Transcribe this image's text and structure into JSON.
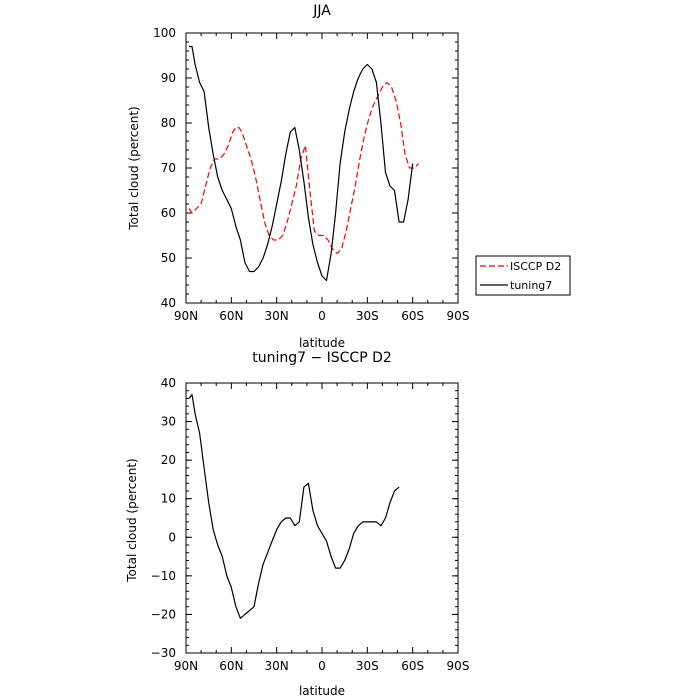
{
  "chart_data": [
    {
      "type": "line",
      "title": "JJA",
      "xlabel": "latitude",
      "ylabel": "Total cloud (percent)",
      "xlim": [
        90,
        -90
      ],
      "ylim": [
        40,
        100
      ],
      "x_ticks": [
        90,
        60,
        30,
        0,
        -30,
        -60,
        -90
      ],
      "x_tick_labels": [
        "90N",
        "60N",
        "30N",
        "0",
        "30S",
        "60S",
        "90S"
      ],
      "y_ticks": [
        40,
        50,
        60,
        70,
        80,
        90,
        100
      ],
      "y_tick_labels": [
        "40",
        "50",
        "60",
        "70",
        "80",
        "90",
        "100"
      ],
      "grid": false,
      "legend_position": "right",
      "series": [
        {
          "name": "ISCCP D2",
          "color": "#ff0000",
          "dash": "dashed",
          "x": [
            88,
            86,
            83,
            80,
            77,
            74,
            71,
            68,
            65,
            62,
            59,
            57,
            55,
            53,
            50,
            47,
            44,
            41,
            38,
            35,
            32,
            29,
            26,
            23,
            20,
            17,
            14,
            11,
            8,
            5,
            2,
            -1,
            -4,
            -7,
            -10,
            -13,
            -16,
            -19,
            -22,
            -25,
            -28,
            -31,
            -34,
            -37,
            -40,
            -43,
            -46,
            -49,
            -52,
            -55,
            -58,
            -61,
            -64
          ],
          "y": [
            61,
            60,
            61,
            62,
            66,
            70,
            72,
            72,
            73,
            75,
            78,
            79,
            79,
            78,
            75,
            72,
            68,
            63,
            58,
            55,
            54,
            54,
            55,
            58,
            62,
            66,
            72,
            75,
            65,
            56,
            55,
            55,
            54,
            52,
            51,
            52,
            56,
            61,
            66,
            72,
            77,
            81,
            84,
            86,
            88,
            89,
            88,
            85,
            80,
            73,
            70,
            70,
            71
          ]
        },
        {
          "name": "tuning7",
          "color": "#000000",
          "dash": "solid",
          "x": [
            88,
            86,
            84,
            81,
            78,
            75,
            72,
            69,
            66,
            63,
            60,
            57,
            54,
            51,
            48,
            45,
            42,
            39,
            36,
            33,
            30,
            27,
            24,
            21,
            18,
            15,
            12,
            9,
            6,
            3,
            0,
            -3,
            -6,
            -9,
            -12,
            -15,
            -18,
            -21,
            -24,
            -27,
            -30,
            -33,
            -36,
            -39,
            -42,
            -45,
            -48,
            -51,
            -54,
            -57,
            -60,
            -63,
            -66,
            -69,
            -72,
            -75,
            -78,
            -81,
            -84,
            -87
          ],
          "y": [
            97,
            97,
            93,
            89,
            87,
            79,
            73,
            68,
            65,
            63,
            61,
            57,
            54,
            49,
            47,
            47,
            48,
            50,
            53,
            57,
            62,
            67,
            73,
            78,
            79,
            74,
            67,
            59,
            53,
            49,
            46,
            45,
            51,
            60,
            71,
            78,
            83,
            87,
            90,
            92,
            93,
            92,
            89,
            80,
            69,
            66,
            65,
            58,
            58,
            63,
            71,
            null,
            null,
            null,
            null,
            null,
            null,
            null,
            null,
            null
          ]
        }
      ]
    },
    {
      "type": "line",
      "title": "tuning7 − ISCCP D2",
      "xlabel": "latitude",
      "ylabel": "Total cloud (percent)",
      "xlim": [
        90,
        -90
      ],
      "ylim": [
        -30,
        40
      ],
      "x_ticks": [
        90,
        60,
        30,
        0,
        -30,
        -60,
        -90
      ],
      "x_tick_labels": [
        "90N",
        "60N",
        "30N",
        "0",
        "30S",
        "60S",
        "90S"
      ],
      "y_ticks": [
        -30,
        -20,
        -10,
        0,
        10,
        20,
        30,
        40
      ],
      "y_tick_labels": [
        "−30",
        "−20",
        "−10",
        "0",
        "10",
        "20",
        "30",
        "40"
      ],
      "grid": false,
      "series": [
        {
          "name": "",
          "color": "#000000",
          "dash": "solid",
          "x": [
            88,
            86,
            84,
            81,
            78,
            75,
            72,
            69,
            66,
            63,
            60,
            57,
            54,
            51,
            48,
            45,
            42,
            39,
            36,
            33,
            30,
            27,
            24,
            21,
            18,
            15,
            12,
            9,
            6,
            3,
            0,
            -3,
            -6,
            -9,
            -12,
            -15,
            -18,
            -21,
            -24,
            -27,
            -30,
            -33,
            -36,
            -39,
            -42,
            -45,
            -48,
            -51,
            -54,
            -57,
            -60,
            -63,
            -66
          ],
          "y": [
            36,
            37,
            32,
            27,
            18,
            9,
            2,
            -2,
            -5,
            -10,
            -13,
            -18,
            -21,
            -20,
            -19,
            -18,
            -12,
            -7,
            -4,
            -1,
            2,
            4,
            5,
            5,
            3,
            4,
            13,
            14,
            7,
            3,
            1,
            -1,
            -5,
            -8,
            -8,
            -6,
            -3,
            1,
            3,
            4,
            4,
            4,
            4,
            3,
            5,
            9,
            12,
            13,
            null,
            null,
            null,
            null,
            null
          ]
        }
      ]
    }
  ],
  "legend": {
    "items": [
      {
        "label": "ISCCP D2",
        "color": "#ff0000",
        "dash": "dashed"
      },
      {
        "label": "tuning7",
        "color": "#000000",
        "dash": "solid"
      }
    ]
  }
}
